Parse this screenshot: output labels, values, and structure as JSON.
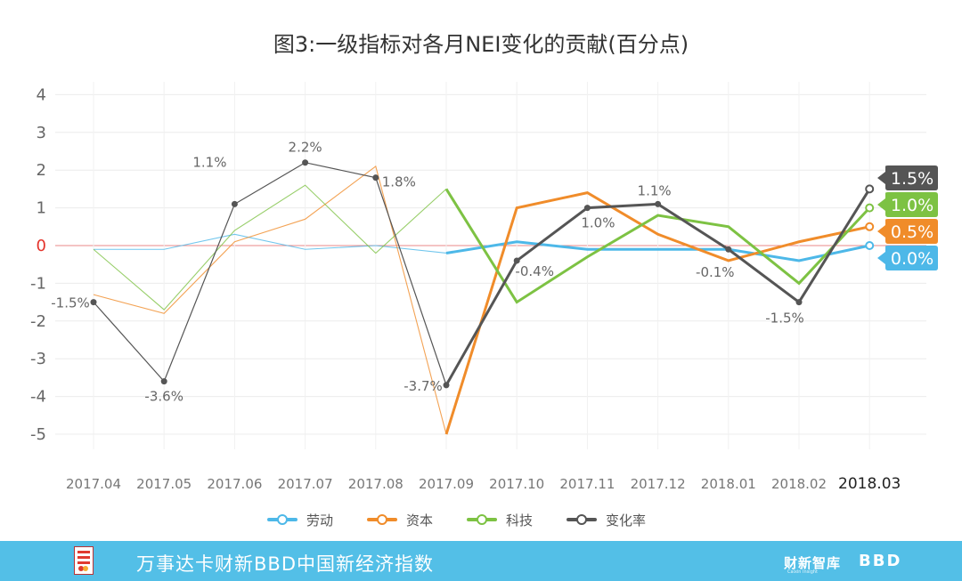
{
  "chart_data": {
    "type": "line",
    "title": "图3:一级指标对各月NEI变化的贡献(百分点)",
    "categories": [
      "2017.04",
      "2017.05",
      "2017.06",
      "2017.07",
      "2017.08",
      "2017.09",
      "2017.10",
      "2017.11",
      "2017.12",
      "2018.01",
      "2018.02",
      "2018.03"
    ],
    "ylim": [
      -5,
      4
    ],
    "yticks": [
      "4",
      "3",
      "2",
      "1",
      "0",
      "-1",
      "-2",
      "-3",
      "-4",
      "-5"
    ],
    "series": [
      {
        "name": "劳动",
        "color": "#4db8e8",
        "values": [
          -0.1,
          -0.1,
          0.3,
          -0.1,
          0.0,
          -0.2,
          0.1,
          -0.1,
          -0.1,
          -0.1,
          -0.4,
          0.0
        ],
        "end_label": "0.0%"
      },
      {
        "name": "资本",
        "color": "#f08c2a",
        "values": [
          -1.3,
          -1.8,
          0.1,
          0.7,
          2.1,
          -5.0,
          1.0,
          1.4,
          0.3,
          -0.4,
          0.1,
          0.5
        ],
        "end_label": "0.5%"
      },
      {
        "name": "科技",
        "color": "#7dc243",
        "values": [
          -0.1,
          -1.7,
          0.4,
          1.6,
          -0.2,
          1.5,
          -1.5,
          -0.3,
          0.8,
          0.5,
          -1.0,
          1.0
        ],
        "end_label": "1.0%"
      },
      {
        "name": "变化率",
        "color": "#555555",
        "values": [
          -1.5,
          -3.6,
          1.1,
          2.2,
          1.8,
          -3.7,
          -0.4,
          1.0,
          1.1,
          -0.1,
          -1.5,
          1.5
        ],
        "end_label": "1.5%"
      }
    ],
    "point_labels": [
      "-1.5%",
      "-3.6%",
      "1.1%",
      "2.2%",
      "1.8%",
      "-3.7%",
      "-0.4%",
      "1.0%",
      "1.1%",
      "-0.1%",
      "-1.5%"
    ]
  },
  "footer": {
    "title": "万事达卡财新BBD中国新经济指数",
    "brand": "财新智库",
    "brand_sub": "Caixin Insight",
    "logo_text": "BBD"
  }
}
